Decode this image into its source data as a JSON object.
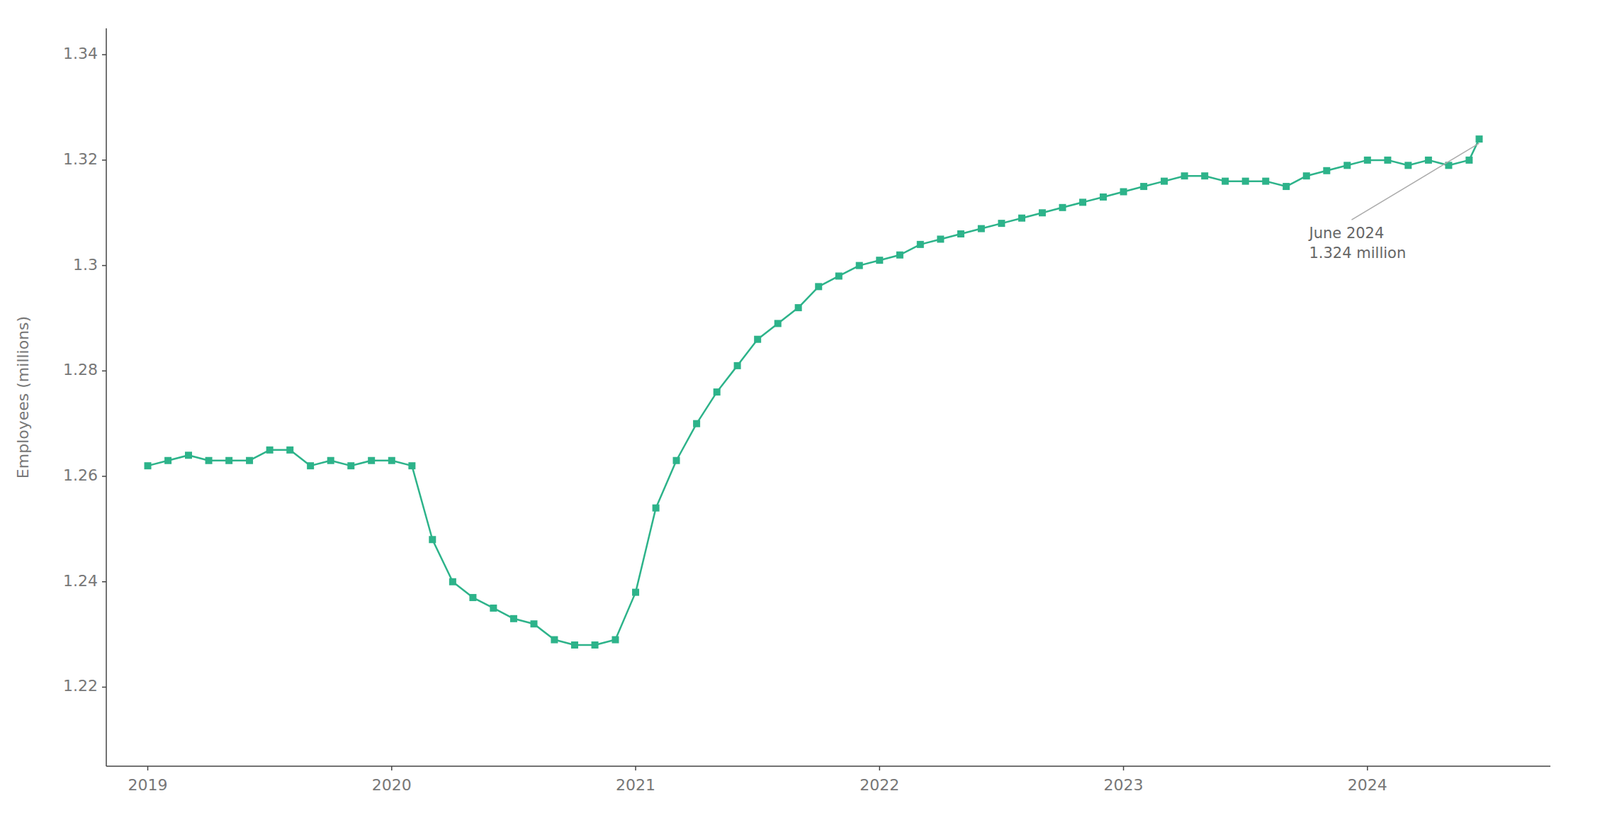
{
  "chart_data": {
    "type": "line",
    "ylabel": "Employees (millions)",
    "color": "#2db38a",
    "marker": "square",
    "grid": false,
    "xlim": [
      2018.83,
      2024.75
    ],
    "ylim": [
      1.205,
      1.345
    ],
    "xticks": [
      2019,
      2020,
      2021,
      2022,
      2023,
      2024
    ],
    "yticks": [
      1.22,
      1.24,
      1.26,
      1.28,
      1.3,
      1.32,
      1.34
    ],
    "annotations": [
      {
        "text": "June 2024\n1.324 million",
        "x": 2024.458,
        "y": 1.324
      }
    ],
    "x": [
      2019.0,
      2019.083,
      2019.167,
      2019.25,
      2019.333,
      2019.417,
      2019.5,
      2019.583,
      2019.667,
      2019.75,
      2019.833,
      2019.917,
      2020.0,
      2020.083,
      2020.167,
      2020.25,
      2020.333,
      2020.417,
      2020.5,
      2020.583,
      2020.667,
      2020.75,
      2020.833,
      2020.917,
      2021.0,
      2021.083,
      2021.167,
      2021.25,
      2021.333,
      2021.417,
      2021.5,
      2021.583,
      2021.667,
      2021.75,
      2021.833,
      2021.917,
      2022.0,
      2022.083,
      2022.167,
      2022.25,
      2022.333,
      2022.417,
      2022.5,
      2022.583,
      2022.667,
      2022.75,
      2022.833,
      2022.917,
      2023.0,
      2023.083,
      2023.167,
      2023.25,
      2023.333,
      2023.417,
      2023.5,
      2023.583,
      2023.667,
      2023.75,
      2023.833,
      2023.917,
      2024.0,
      2024.083,
      2024.167,
      2024.25,
      2024.333,
      2024.417,
      2024.458
    ],
    "values": [
      1.262,
      1.263,
      1.264,
      1.263,
      1.263,
      1.263,
      1.265,
      1.265,
      1.262,
      1.263,
      1.262,
      1.263,
      1.263,
      1.262,
      1.248,
      1.24,
      1.237,
      1.235,
      1.233,
      1.232,
      1.229,
      1.228,
      1.228,
      1.229,
      1.238,
      1.254,
      1.263,
      1.27,
      1.276,
      1.281,
      1.286,
      1.289,
      1.292,
      1.296,
      1.298,
      1.3,
      1.301,
      1.302,
      1.304,
      1.305,
      1.306,
      1.307,
      1.308,
      1.309,
      1.31,
      1.311,
      1.312,
      1.313,
      1.314,
      1.315,
      1.316,
      1.317,
      1.317,
      1.316,
      1.316,
      1.316,
      1.315,
      1.317,
      1.318,
      1.319,
      1.32,
      1.32,
      1.319,
      1.32,
      1.319,
      1.32,
      1.324
    ]
  }
}
